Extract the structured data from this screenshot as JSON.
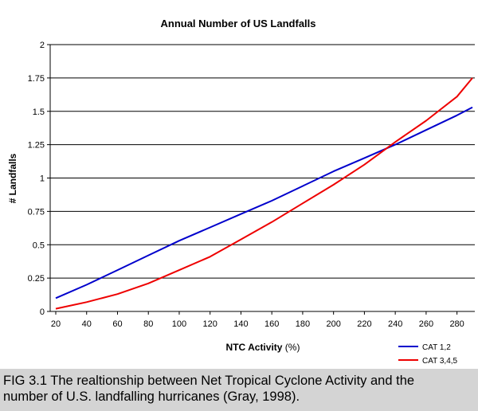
{
  "chart_data": {
    "type": "line",
    "title": "Annual Number of US Landfalls",
    "xlabel": "NTC Activity",
    "xlabel_unit": " (%)",
    "ylabel": "# Landfalls",
    "xlim": [
      20,
      290
    ],
    "ylim": [
      0,
      2
    ],
    "x_ticks": [
      20,
      40,
      60,
      80,
      100,
      120,
      140,
      160,
      180,
      200,
      220,
      240,
      260,
      280
    ],
    "y_ticks": [
      0,
      0.25,
      0.5,
      0.75,
      1,
      1.25,
      1.5,
      1.75,
      2
    ],
    "y_tick_labels": [
      "0",
      "0.25",
      "0.5",
      "0.75",
      "1",
      "1.25",
      "1.5",
      "1.75",
      "2"
    ],
    "grid": "horizontal",
    "legend_position": "bottom-right",
    "series": [
      {
        "name": "CAT 1,2",
        "color": "#0000cc",
        "x": [
          20,
          40,
          60,
          80,
          100,
          120,
          140,
          160,
          180,
          200,
          220,
          240,
          260,
          280,
          290
        ],
        "y": [
          0.1,
          0.2,
          0.31,
          0.42,
          0.53,
          0.63,
          0.73,
          0.83,
          0.94,
          1.05,
          1.15,
          1.25,
          1.36,
          1.47,
          1.53
        ]
      },
      {
        "name": "CAT 3,4,5",
        "color": "#ee0000",
        "x": [
          20,
          40,
          60,
          80,
          100,
          120,
          140,
          160,
          180,
          200,
          220,
          240,
          260,
          280,
          290
        ],
        "y": [
          0.02,
          0.07,
          0.13,
          0.21,
          0.31,
          0.41,
          0.54,
          0.67,
          0.81,
          0.95,
          1.1,
          1.27,
          1.43,
          1.61,
          1.75
        ]
      }
    ]
  },
  "caption": {
    "line1": "FIG 3.1  The realtionship between Net Tropical Cyclone Activity and the",
    "line2": "number of U.S. landfalling hurricanes (Gray, 1998)."
  }
}
